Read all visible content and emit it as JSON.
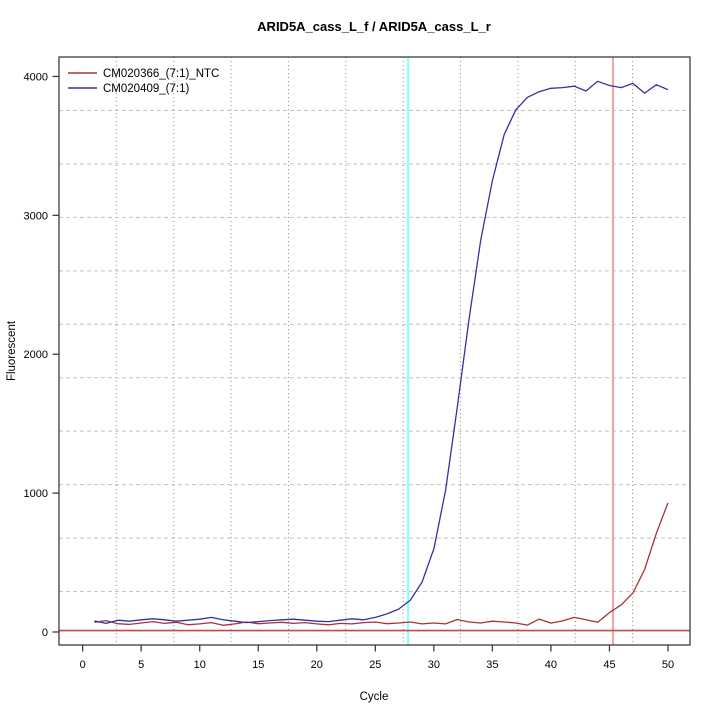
{
  "chart_data": {
    "type": "line",
    "title": "ARID5A_cass_L_f / ARID5A_cass_L_r",
    "xlabel": "Cycle",
    "ylabel": "Fluorescent",
    "x": [
      1,
      2,
      3,
      4,
      5,
      6,
      7,
      8,
      9,
      10,
      11,
      12,
      13,
      14,
      15,
      16,
      17,
      18,
      19,
      20,
      21,
      22,
      23,
      24,
      25,
      26,
      27,
      28,
      29,
      30,
      31,
      32,
      33,
      34,
      35,
      36,
      37,
      38,
      39,
      40,
      41,
      42,
      43,
      44,
      45,
      46,
      47,
      48,
      49,
      50
    ],
    "series": [
      {
        "name": "CM020366_(7:1)_NTC",
        "color": "#a33535",
        "values": [
          70,
          82,
          60,
          55,
          65,
          75,
          62,
          70,
          52,
          58,
          68,
          48,
          58,
          72,
          60,
          65,
          70,
          62,
          68,
          58,
          52,
          62,
          58,
          68,
          72,
          60,
          65,
          72,
          58,
          65,
          58,
          90,
          72,
          65,
          78,
          72,
          65,
          50,
          93,
          64,
          80,
          105,
          88,
          70,
          140,
          195,
          280,
          450,
          710,
          930
        ]
      },
      {
        "name": "CM020409_(7:1)",
        "color": "#3333a0",
        "values": [
          80,
          62,
          85,
          78,
          88,
          95,
          88,
          78,
          85,
          92,
          105,
          88,
          78,
          68,
          75,
          82,
          88,
          92,
          85,
          78,
          75,
          85,
          95,
          88,
          105,
          130,
          165,
          230,
          360,
          600,
          1020,
          1620,
          2250,
          2820,
          3250,
          3580,
          3760,
          3850,
          3890,
          3915,
          3920,
          3930,
          3895,
          3965,
          3935,
          3920,
          3950,
          3880,
          3940,
          3905
        ]
      }
    ],
    "xticks": [
      0,
      5,
      10,
      15,
      20,
      25,
      30,
      35,
      40,
      45,
      50
    ],
    "yticks": [
      0,
      1000,
      2000,
      3000,
      4000
    ],
    "x_range": [
      -2.02,
      51.88
    ],
    "y_range": [
      -93.6,
      4140
    ],
    "grid": {
      "nx": 11,
      "ny": 11,
      "vertical_style": "dotted",
      "horizontal_style": "dashed",
      "vertical_color": "#8c8c8c",
      "horizontal_color": "#c4c4c4"
    },
    "vlines": [
      {
        "x": 27.8,
        "color": "#80ffff",
        "label": "cyan-ct-marker"
      },
      {
        "x": 45.3,
        "color": "#f2a2a2",
        "label": "red-ct-marker"
      }
    ],
    "hlines": [
      {
        "y": 10,
        "color": "#c24949",
        "label": "fluorescence-threshold"
      }
    ],
    "legend_position": "top-left",
    "axis_color": "#3d3d3d"
  }
}
